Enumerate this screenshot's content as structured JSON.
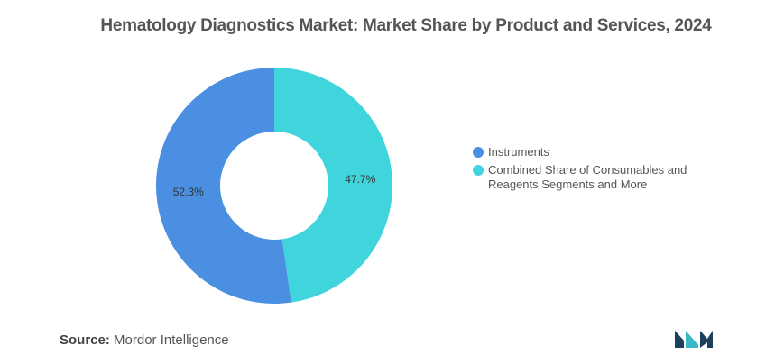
{
  "title": "Hematology Diagnostics Market: Market Share by Product and Services, 2024",
  "source": {
    "label": "Source:",
    "value": "Mordor Intelligence"
  },
  "chart_data": {
    "type": "pie",
    "variant": "donut",
    "title": "Hematology Diagnostics Market: Market Share by Product and Services, 2024",
    "legend_position": "right",
    "slices": [
      {
        "label": "Instruments",
        "value": 52.3,
        "display": "52.3%",
        "color": "#4b8fe2"
      },
      {
        "label": "Combined Share of Consumables and Reagents Segments and More",
        "value": 47.7,
        "display": "47.7%",
        "color": "#40d4dc"
      }
    ]
  },
  "legend": {
    "items": [
      {
        "line1": "Instruments",
        "line2": "",
        "color": "#4b8fe2"
      },
      {
        "line1": "Combined Share of Consumables and",
        "line2": "Reagents Segments and More",
        "color": "#40d4dc"
      }
    ]
  },
  "logo": {
    "icon": "mordor-intelligence-logo",
    "colors": [
      "#1b3f5c",
      "#3bb6c6"
    ]
  }
}
